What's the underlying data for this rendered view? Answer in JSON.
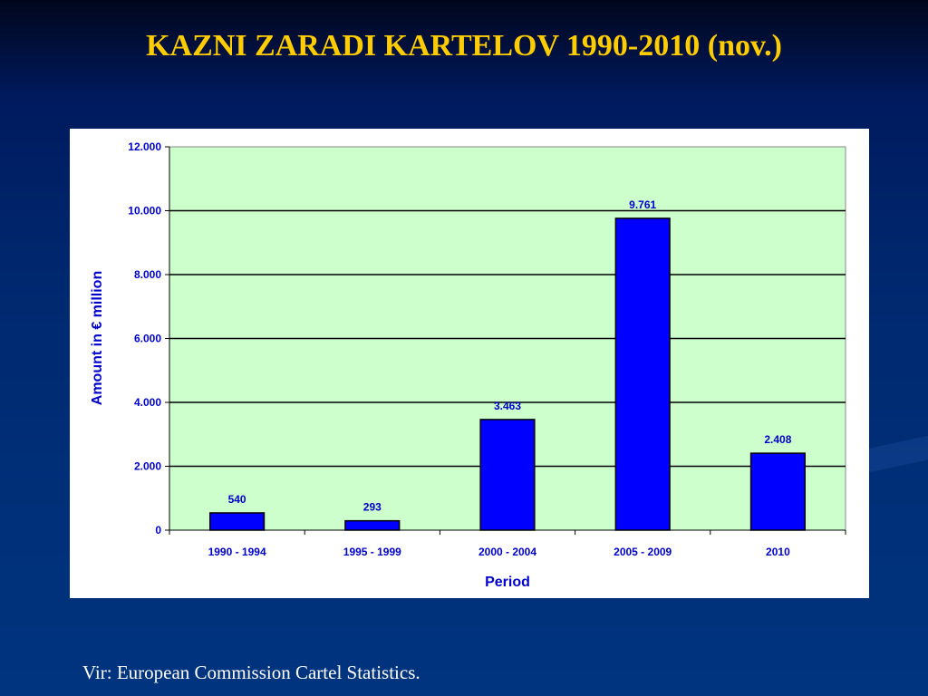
{
  "slide": {
    "title": "KAZNI ZARADI KARTELOV 1990-2010 (nov.)",
    "source": "Vir: European Commission Cartel Statistics."
  },
  "colors": {
    "title": "#ffcc00",
    "plot_background": "#ccffcc",
    "bar_fill": "#0000ff",
    "label_text": "#0000cc"
  },
  "chart_data": {
    "type": "bar",
    "categories": [
      "1990 - 1994",
      "1995 - 1999",
      "2000 - 2004",
      "2005 - 2009",
      "2010"
    ],
    "values": [
      540,
      293,
      3463,
      9761,
      2408
    ],
    "value_labels": [
      "540",
      "293",
      "3.463",
      "9.761",
      "2.408"
    ],
    "xlabel": "Period",
    "ylabel": "Amount in € million",
    "ylim": [
      0,
      12000
    ],
    "yticks": [
      0,
      2000,
      4000,
      6000,
      8000,
      10000,
      12000
    ],
    "ytick_labels": [
      "0",
      "2.000",
      "4.000",
      "6.000",
      "8.000",
      "10.000",
      "12.000"
    ],
    "grid": true,
    "legend": "none"
  }
}
